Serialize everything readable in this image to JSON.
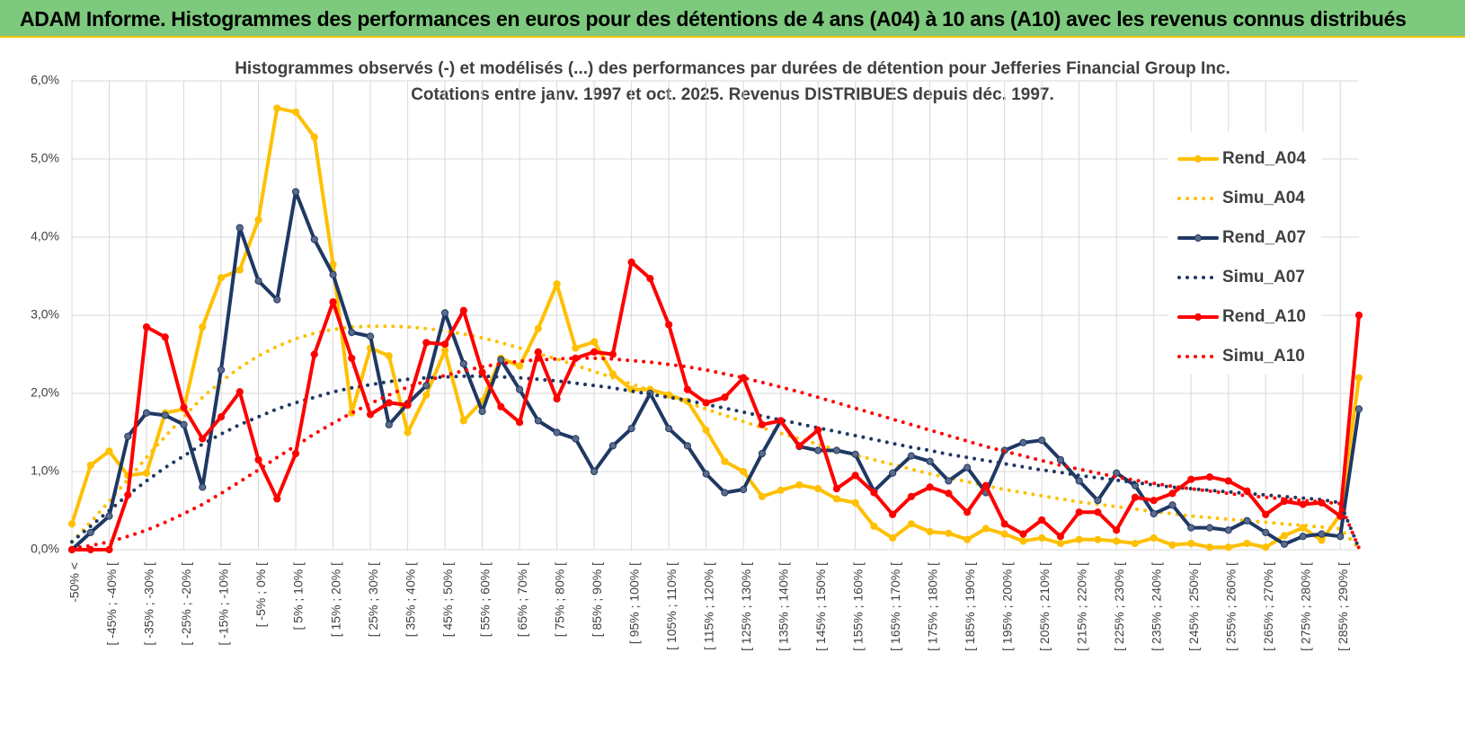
{
  "header": {
    "title": "ADAM Informe. Histogrammes des performances en euros pour des détentions de 4 ans (A04) à 10 ans (A10) avec les revenus connus distribués"
  },
  "chart_data": {
    "type": "line",
    "title": "Histogrammes observés (-) et modélisés (...) des performances par durées de détention pour Jefferies Financial Group Inc.",
    "subtitle": "Cotations entre janv. 1997 et oct. 2025.  Revenus DISTRIBUES depuis déc. 1997.",
    "categories": [
      "-50% <",
      null,
      "[ -45% ; -40% [",
      null,
      "[ -35% ; -30% [",
      null,
      "[ -25% ; -20% [",
      null,
      "[ -15% ; -10% [",
      null,
      "[ -5% ; 0% [",
      null,
      "[ 5% ; 10% [",
      null,
      "[ 15% ; 20% [",
      null,
      "[ 25% ; 30% [",
      null,
      "[ 35% ; 40% [",
      null,
      "[ 45% ; 50% [",
      null,
      "[ 55% ; 60% [",
      null,
      "[ 65% ; 70% [",
      null,
      "[ 75% ; 80% [",
      null,
      "[ 85% ; 90% [",
      null,
      "[ 95% ; 100% [",
      null,
      "[ 105% ; 110% [",
      null,
      "[ 115% ; 120% [",
      null,
      "[ 125% ; 130% [",
      null,
      "[ 135% ; 140% [",
      null,
      "[ 145% ; 150% [",
      null,
      "[ 155% ; 160% [",
      null,
      "[ 165% ; 170% [",
      null,
      "[ 175% ; 180% [",
      null,
      "[ 185% ; 190% [",
      null,
      "[ 195% ; 200% [",
      null,
      "[ 205% ; 210% [",
      null,
      "[ 215% ; 220% [",
      null,
      "[ 225% ; 230% [",
      null,
      "[ 235% ; 240% [",
      null,
      "[ 245% ; 250% [",
      null,
      "[ 255% ; 260% [",
      null,
      "[ 265% ; 270% [",
      null,
      "[ 275% ; 280% [",
      null,
      "[ 285% ; 290% [",
      null
    ],
    "ylim": [
      0,
      6
    ],
    "yticks": [
      {
        "value": 0,
        "label": "0,0%"
      },
      {
        "value": 1,
        "label": "1,0%"
      },
      {
        "value": 2,
        "label": "2,0%"
      },
      {
        "value": 3,
        "label": "3,0%"
      },
      {
        "value": 4,
        "label": "4,0%"
      },
      {
        "value": 5,
        "label": "5,0%"
      },
      {
        "value": 6,
        "label": "6,0%"
      }
    ],
    "grid": true,
    "legend": "right",
    "series": [
      {
        "name": "Rend_A04",
        "color": "#FFC000",
        "line_style": "solid",
        "markers": true,
        "values": [
          0.33,
          1.08,
          1.26,
          0.95,
          0.98,
          1.75,
          1.8,
          2.85,
          3.48,
          3.58,
          4.22,
          5.65,
          5.6,
          5.28,
          3.65,
          1.75,
          2.58,
          2.48,
          1.5,
          1.98,
          2.55,
          1.65,
          1.9,
          2.45,
          2.35,
          2.83,
          3.4,
          2.58,
          2.66,
          2.25,
          2.05,
          2.05,
          1.98,
          1.9,
          1.53,
          1.13,
          1.0,
          0.68,
          0.76,
          0.83,
          0.78,
          0.65,
          0.6,
          0.3,
          0.15,
          0.33,
          0.23,
          0.21,
          0.13,
          0.27,
          0.2,
          0.11,
          0.15,
          0.08,
          0.13,
          0.13,
          0.11,
          0.08,
          0.15,
          0.06,
          0.08,
          0.03,
          0.03,
          0.08,
          0.03,
          0.18,
          0.28,
          0.12,
          0.45,
          2.2
        ]
      },
      {
        "name": "Simu_A04",
        "color": "#FFC000",
        "line_style": "dotted",
        "markers": false,
        "values": [
          0.1,
          0.35,
          0.62,
          0.9,
          1.18,
          1.45,
          1.7,
          1.95,
          2.15,
          2.33,
          2.48,
          2.6,
          2.7,
          2.77,
          2.82,
          2.85,
          2.86,
          2.86,
          2.85,
          2.83,
          2.8,
          2.76,
          2.71,
          2.65,
          2.58,
          2.51,
          2.44,
          2.36,
          2.28,
          2.2,
          2.12,
          2.04,
          1.96,
          1.88,
          1.8,
          1.72,
          1.64,
          1.56,
          1.49,
          1.42,
          1.35,
          1.28,
          1.21,
          1.15,
          1.09,
          1.03,
          0.97,
          0.92,
          0.87,
          0.82,
          0.77,
          0.73,
          0.69,
          0.65,
          0.61,
          0.58,
          0.55,
          0.52,
          0.49,
          0.46,
          0.43,
          0.41,
          0.39,
          0.37,
          0.35,
          0.33,
          0.31,
          0.29,
          0.27,
          0.02
        ]
      },
      {
        "name": "Rend_A07",
        "color": "#1F3864",
        "line_style": "solid",
        "markers": true,
        "values": [
          0.0,
          0.22,
          0.43,
          1.45,
          1.75,
          1.72,
          1.6,
          0.8,
          2.3,
          4.12,
          3.44,
          3.2,
          4.58,
          3.97,
          3.52,
          2.78,
          2.73,
          1.6,
          1.87,
          2.1,
          3.03,
          2.38,
          1.77,
          2.43,
          2.05,
          1.65,
          1.5,
          1.42,
          1.0,
          1.33,
          1.55,
          2.0,
          1.55,
          1.33,
          0.97,
          0.73,
          0.77,
          1.23,
          1.65,
          1.32,
          1.27,
          1.27,
          1.22,
          0.75,
          0.98,
          1.2,
          1.13,
          0.88,
          1.05,
          0.73,
          1.27,
          1.37,
          1.4,
          1.15,
          0.88,
          0.63,
          0.98,
          0.82,
          0.46,
          0.57,
          0.28,
          0.28,
          0.25,
          0.37,
          0.22,
          0.07,
          0.17,
          0.2,
          0.17,
          1.8
        ]
      },
      {
        "name": "Simu_A07",
        "color": "#1F3864",
        "line_style": "dotted",
        "markers": false,
        "values": [
          0.1,
          0.3,
          0.5,
          0.7,
          0.88,
          1.05,
          1.2,
          1.35,
          1.48,
          1.6,
          1.7,
          1.8,
          1.88,
          1.95,
          2.02,
          2.07,
          2.11,
          2.15,
          2.18,
          2.2,
          2.21,
          2.22,
          2.22,
          2.21,
          2.2,
          2.18,
          2.16,
          2.13,
          2.1,
          2.07,
          2.03,
          1.99,
          1.95,
          1.91,
          1.86,
          1.81,
          1.76,
          1.71,
          1.66,
          1.61,
          1.56,
          1.51,
          1.46,
          1.41,
          1.36,
          1.31,
          1.27,
          1.22,
          1.18,
          1.14,
          1.1,
          1.06,
          1.02,
          0.99,
          0.95,
          0.92,
          0.89,
          0.86,
          0.83,
          0.8,
          0.78,
          0.76,
          0.74,
          0.72,
          0.7,
          0.68,
          0.66,
          0.64,
          0.6,
          0.02
        ]
      },
      {
        "name": "Rend_A10",
        "color": "#FF0000",
        "line_style": "solid",
        "markers": true,
        "values": [
          0.0,
          0.0,
          0.0,
          0.7,
          2.85,
          2.72,
          1.82,
          1.42,
          1.7,
          2.02,
          1.15,
          0.65,
          1.23,
          2.5,
          3.17,
          2.45,
          1.73,
          1.88,
          1.85,
          2.65,
          2.63,
          3.06,
          2.27,
          1.83,
          1.63,
          2.53,
          1.93,
          2.45,
          2.53,
          2.5,
          3.68,
          3.47,
          2.88,
          2.05,
          1.88,
          1.95,
          2.2,
          1.6,
          1.65,
          1.33,
          1.53,
          0.78,
          0.95,
          0.73,
          0.45,
          0.68,
          0.8,
          0.72,
          0.48,
          0.82,
          0.33,
          0.2,
          0.38,
          0.17,
          0.48,
          0.48,
          0.25,
          0.67,
          0.63,
          0.72,
          0.9,
          0.93,
          0.88,
          0.75,
          0.45,
          0.62,
          0.58,
          0.6,
          0.43,
          3.0
        ]
      },
      {
        "name": "Simu_A10",
        "color": "#FF0000",
        "line_style": "dotted",
        "markers": false,
        "values": [
          0.02,
          0.05,
          0.1,
          0.17,
          0.25,
          0.35,
          0.46,
          0.58,
          0.72,
          0.87,
          1.02,
          1.18,
          1.33,
          1.48,
          1.62,
          1.75,
          1.87,
          1.98,
          2.08,
          2.16,
          2.23,
          2.29,
          2.34,
          2.38,
          2.41,
          2.43,
          2.44,
          2.45,
          2.45,
          2.44,
          2.42,
          2.4,
          2.37,
          2.34,
          2.3,
          2.25,
          2.2,
          2.14,
          2.08,
          2.02,
          1.95,
          1.88,
          1.81,
          1.74,
          1.67,
          1.6,
          1.53,
          1.46,
          1.39,
          1.32,
          1.26,
          1.2,
          1.14,
          1.08,
          1.03,
          0.98,
          0.93,
          0.89,
          0.85,
          0.81,
          0.78,
          0.75,
          0.72,
          0.69,
          0.67,
          0.65,
          0.63,
          0.61,
          0.59,
          0.02
        ]
      }
    ]
  }
}
